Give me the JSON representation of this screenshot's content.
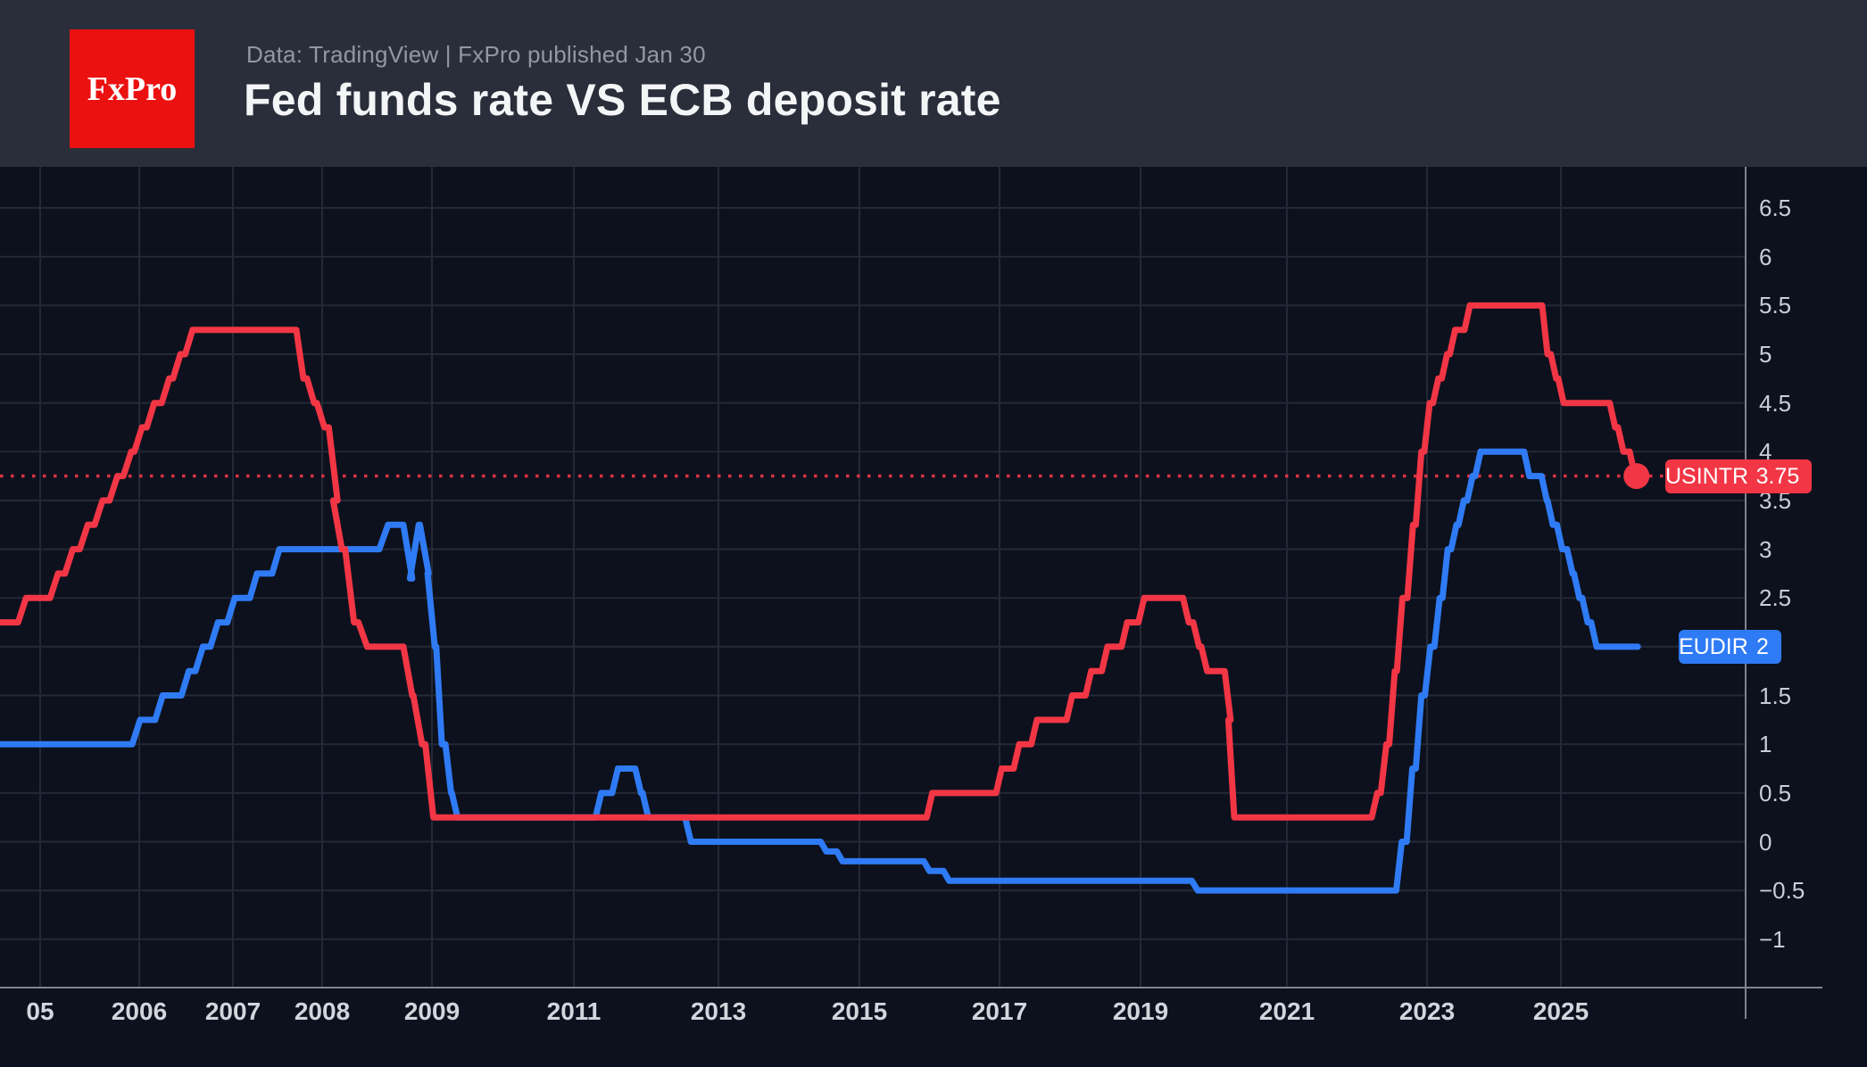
{
  "header": {
    "logo_text": "FxPro",
    "subtitle": "Data: TradingView  |  FxPro published Jan 30",
    "title": "Fed funds rate VS ECB deposit rate"
  },
  "colors": {
    "background": "#0d111d",
    "header_bar": "#2a2e3a",
    "logo_red": "#ec1111",
    "grid": "#232936",
    "axis_line": "#80848e",
    "tick_text": "#c9cdd6",
    "x_tick_text": "#d2d5dc",
    "subtitle_text": "#9298a3",
    "title_text": "#f4f5f7",
    "usintr_red": "#f23645",
    "eudir_blue": "#2f7bf5"
  },
  "chart_data": {
    "type": "line",
    "title": "Fed funds rate VS ECB deposit rate",
    "grid": "on",
    "y_axis": {
      "min": -1,
      "max": 6.5,
      "tick_step": 0.5,
      "ticks": [
        {
          "label": "6.5",
          "value": 6.5
        },
        {
          "label": "6",
          "value": 6
        },
        {
          "label": "5.5",
          "value": 5.5
        },
        {
          "label": "5",
          "value": 5
        },
        {
          "label": "4.5",
          "value": 4.5
        },
        {
          "label": "4",
          "value": 4
        },
        {
          "label": "3.5",
          "value": 3.5
        },
        {
          "label": "3",
          "value": 3
        },
        {
          "label": "2.5",
          "value": 2.5
        },
        {
          "label": "1.5",
          "value": 1.5
        },
        {
          "label": "1",
          "value": 1
        },
        {
          "label": "0.5",
          "value": 0.5
        },
        {
          "label": "0",
          "value": 0
        },
        {
          "label": "−0.5",
          "value": -0.5
        },
        {
          "label": "−1",
          "value": -1
        }
      ],
      "note": "tick at 2 hidden behind EUDIR badge"
    },
    "x_axis": {
      "labels": [
        {
          "text": "05",
          "year": 2005
        },
        {
          "text": "2006",
          "year": 2006
        },
        {
          "text": "2007",
          "year": 2007
        },
        {
          "text": "2008",
          "year": 2008
        },
        {
          "text": "2009",
          "year": 2009
        },
        {
          "text": "2011",
          "year": 2011
        },
        {
          "text": "2013",
          "year": 2013
        },
        {
          "text": "2015",
          "year": 2015
        },
        {
          "text": "2017",
          "year": 2017
        },
        {
          "text": "2019",
          "year": 2019
        },
        {
          "text": "2021",
          "year": 2021
        },
        {
          "text": "2023",
          "year": 2023
        },
        {
          "text": "2025",
          "year": 2025
        }
      ]
    },
    "time_anchors": [
      [
        2004.6,
        0
      ],
      [
        2005,
        45
      ],
      [
        2006,
        156
      ],
      [
        2007,
        261
      ],
      [
        2008,
        361
      ],
      [
        2009,
        484
      ],
      [
        2011,
        643
      ],
      [
        2013,
        805
      ],
      [
        2015,
        963
      ],
      [
        2017,
        1120
      ],
      [
        2019,
        1278
      ],
      [
        2021,
        1442
      ],
      [
        2023,
        1599
      ],
      [
        2025,
        1749
      ],
      [
        2027,
        1903
      ]
    ],
    "series": [
      {
        "name": "USINTR",
        "label": "Fed funds rate",
        "color": "#f23645",
        "last_value": 3.75,
        "last_label": "3.75",
        "end_year": 2026.1,
        "end_dot": true,
        "track_dotted_line": true,
        "steps": [
          [
            2004.6,
            2.25
          ],
          [
            2004.78,
            2.5
          ],
          [
            2005.1,
            2.75
          ],
          [
            2005.25,
            3.0
          ],
          [
            2005.4,
            3.25
          ],
          [
            2005.55,
            3.5
          ],
          [
            2005.7,
            3.75
          ],
          [
            2005.84,
            4.0
          ],
          [
            2005.95,
            4.25
          ],
          [
            2006.08,
            4.5
          ],
          [
            2006.24,
            4.75
          ],
          [
            2006.36,
            5.0
          ],
          [
            2006.49,
            5.25
          ],
          [
            2007.71,
            4.75
          ],
          [
            2007.83,
            4.5
          ],
          [
            2007.94,
            4.25
          ],
          [
            2008.06,
            3.5
          ],
          [
            2008.1,
            3.0
          ],
          [
            2008.21,
            2.25
          ],
          [
            2008.33,
            2.0
          ],
          [
            2008.74,
            1.5
          ],
          [
            2008.83,
            1.0
          ],
          [
            2008.94,
            0.25
          ],
          [
            2015.96,
            0.5
          ],
          [
            2016.95,
            0.75
          ],
          [
            2017.2,
            1.0
          ],
          [
            2017.45,
            1.25
          ],
          [
            2017.95,
            1.5
          ],
          [
            2018.22,
            1.75
          ],
          [
            2018.45,
            2.0
          ],
          [
            2018.73,
            2.25
          ],
          [
            2018.97,
            2.5
          ],
          [
            2019.58,
            2.25
          ],
          [
            2019.72,
            2.0
          ],
          [
            2019.83,
            1.75
          ],
          [
            2020.15,
            1.25
          ],
          [
            2020.2,
            0.25
          ],
          [
            2022.21,
            0.5
          ],
          [
            2022.34,
            1.0
          ],
          [
            2022.46,
            1.75
          ],
          [
            2022.57,
            2.5
          ],
          [
            2022.72,
            3.25
          ],
          [
            2022.84,
            4.0
          ],
          [
            2022.96,
            4.5
          ],
          [
            2023.09,
            4.75
          ],
          [
            2023.22,
            5.0
          ],
          [
            2023.34,
            5.25
          ],
          [
            2023.56,
            5.5
          ],
          [
            2024.72,
            5.0
          ],
          [
            2024.85,
            4.75
          ],
          [
            2024.96,
            4.5
          ],
          [
            2025.71,
            4.25
          ],
          [
            2025.83,
            4.0
          ],
          [
            2026.0,
            3.75
          ]
        ]
      },
      {
        "name": "EUDIR",
        "label": "ECB deposit rate",
        "color": "#2f7bf5",
        "last_value": 2,
        "last_label": "2",
        "end_year": 2026.12,
        "end_dot": false,
        "track_dotted_line": false,
        "steps": [
          [
            2004.6,
            1.0
          ],
          [
            2005.93,
            1.25
          ],
          [
            2006.17,
            1.5
          ],
          [
            2006.45,
            1.75
          ],
          [
            2006.6,
            2.0
          ],
          [
            2006.76,
            2.25
          ],
          [
            2006.94,
            2.5
          ],
          [
            2007.19,
            2.75
          ],
          [
            2007.44,
            3.0
          ],
          [
            2008.52,
            3.25
          ],
          [
            2008.74,
            2.7
          ],
          [
            2008.8,
            3.25
          ],
          [
            2008.89,
            2.75
          ],
          [
            2008.96,
            2.0
          ],
          [
            2009.06,
            1.0
          ],
          [
            2009.19,
            0.5
          ],
          [
            2009.28,
            0.25
          ],
          [
            2011.3,
            0.5
          ],
          [
            2011.53,
            0.75
          ],
          [
            2011.85,
            0.5
          ],
          [
            2011.95,
            0.25
          ],
          [
            2012.54,
            0.0
          ],
          [
            2014.45,
            -0.1
          ],
          [
            2014.68,
            -0.2
          ],
          [
            2015.92,
            -0.3
          ],
          [
            2016.2,
            -0.4
          ],
          [
            2019.7,
            -0.5
          ],
          [
            2022.56,
            0.0
          ],
          [
            2022.71,
            0.75
          ],
          [
            2022.84,
            1.5
          ],
          [
            2022.97,
            2.0
          ],
          [
            2023.11,
            2.5
          ],
          [
            2023.23,
            3.0
          ],
          [
            2023.36,
            3.25
          ],
          [
            2023.47,
            3.5
          ],
          [
            2023.6,
            3.75
          ],
          [
            2023.72,
            4.0
          ],
          [
            2024.45,
            3.75
          ],
          [
            2024.71,
            3.5
          ],
          [
            2024.8,
            3.25
          ],
          [
            2024.94,
            3.0
          ],
          [
            2025.09,
            2.75
          ],
          [
            2025.19,
            2.5
          ],
          [
            2025.31,
            2.25
          ],
          [
            2025.44,
            2.0
          ]
        ]
      }
    ]
  }
}
